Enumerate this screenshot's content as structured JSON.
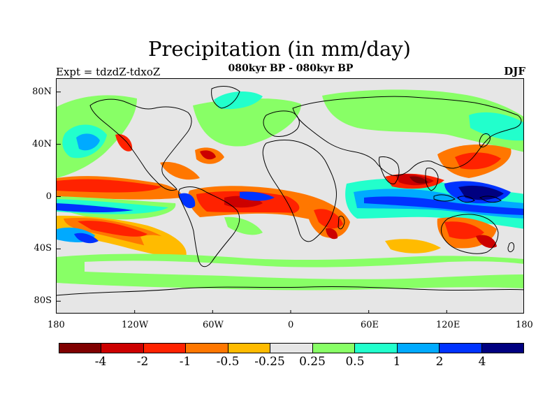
{
  "title": "Precipitation (in mm/day)",
  "subtitle": "080kyr BP - 080kyr BP",
  "left_label": "Expt = tdzdZ-tdxoZ",
  "right_label": "DJF",
  "axis": {
    "longitudes": [
      "180",
      "120W",
      "60W",
      "0",
      "60E",
      "120E",
      "180"
    ],
    "latitudes": [
      "80N",
      "40N",
      "0",
      "40S",
      "80S"
    ]
  },
  "legend": {
    "colors": [
      "#7f0000",
      "#cc0000",
      "#ff2200",
      "#ff7700",
      "#ffbb00",
      "#e6e6e6",
      "#88ff66",
      "#22ffcc",
      "#00aaff",
      "#0033ff",
      "#000080"
    ],
    "labels": [
      "-4",
      "-2",
      "-1",
      "-0.5",
      "-0.25",
      "0.25",
      "0.5",
      "1",
      "2",
      "4"
    ]
  }
}
